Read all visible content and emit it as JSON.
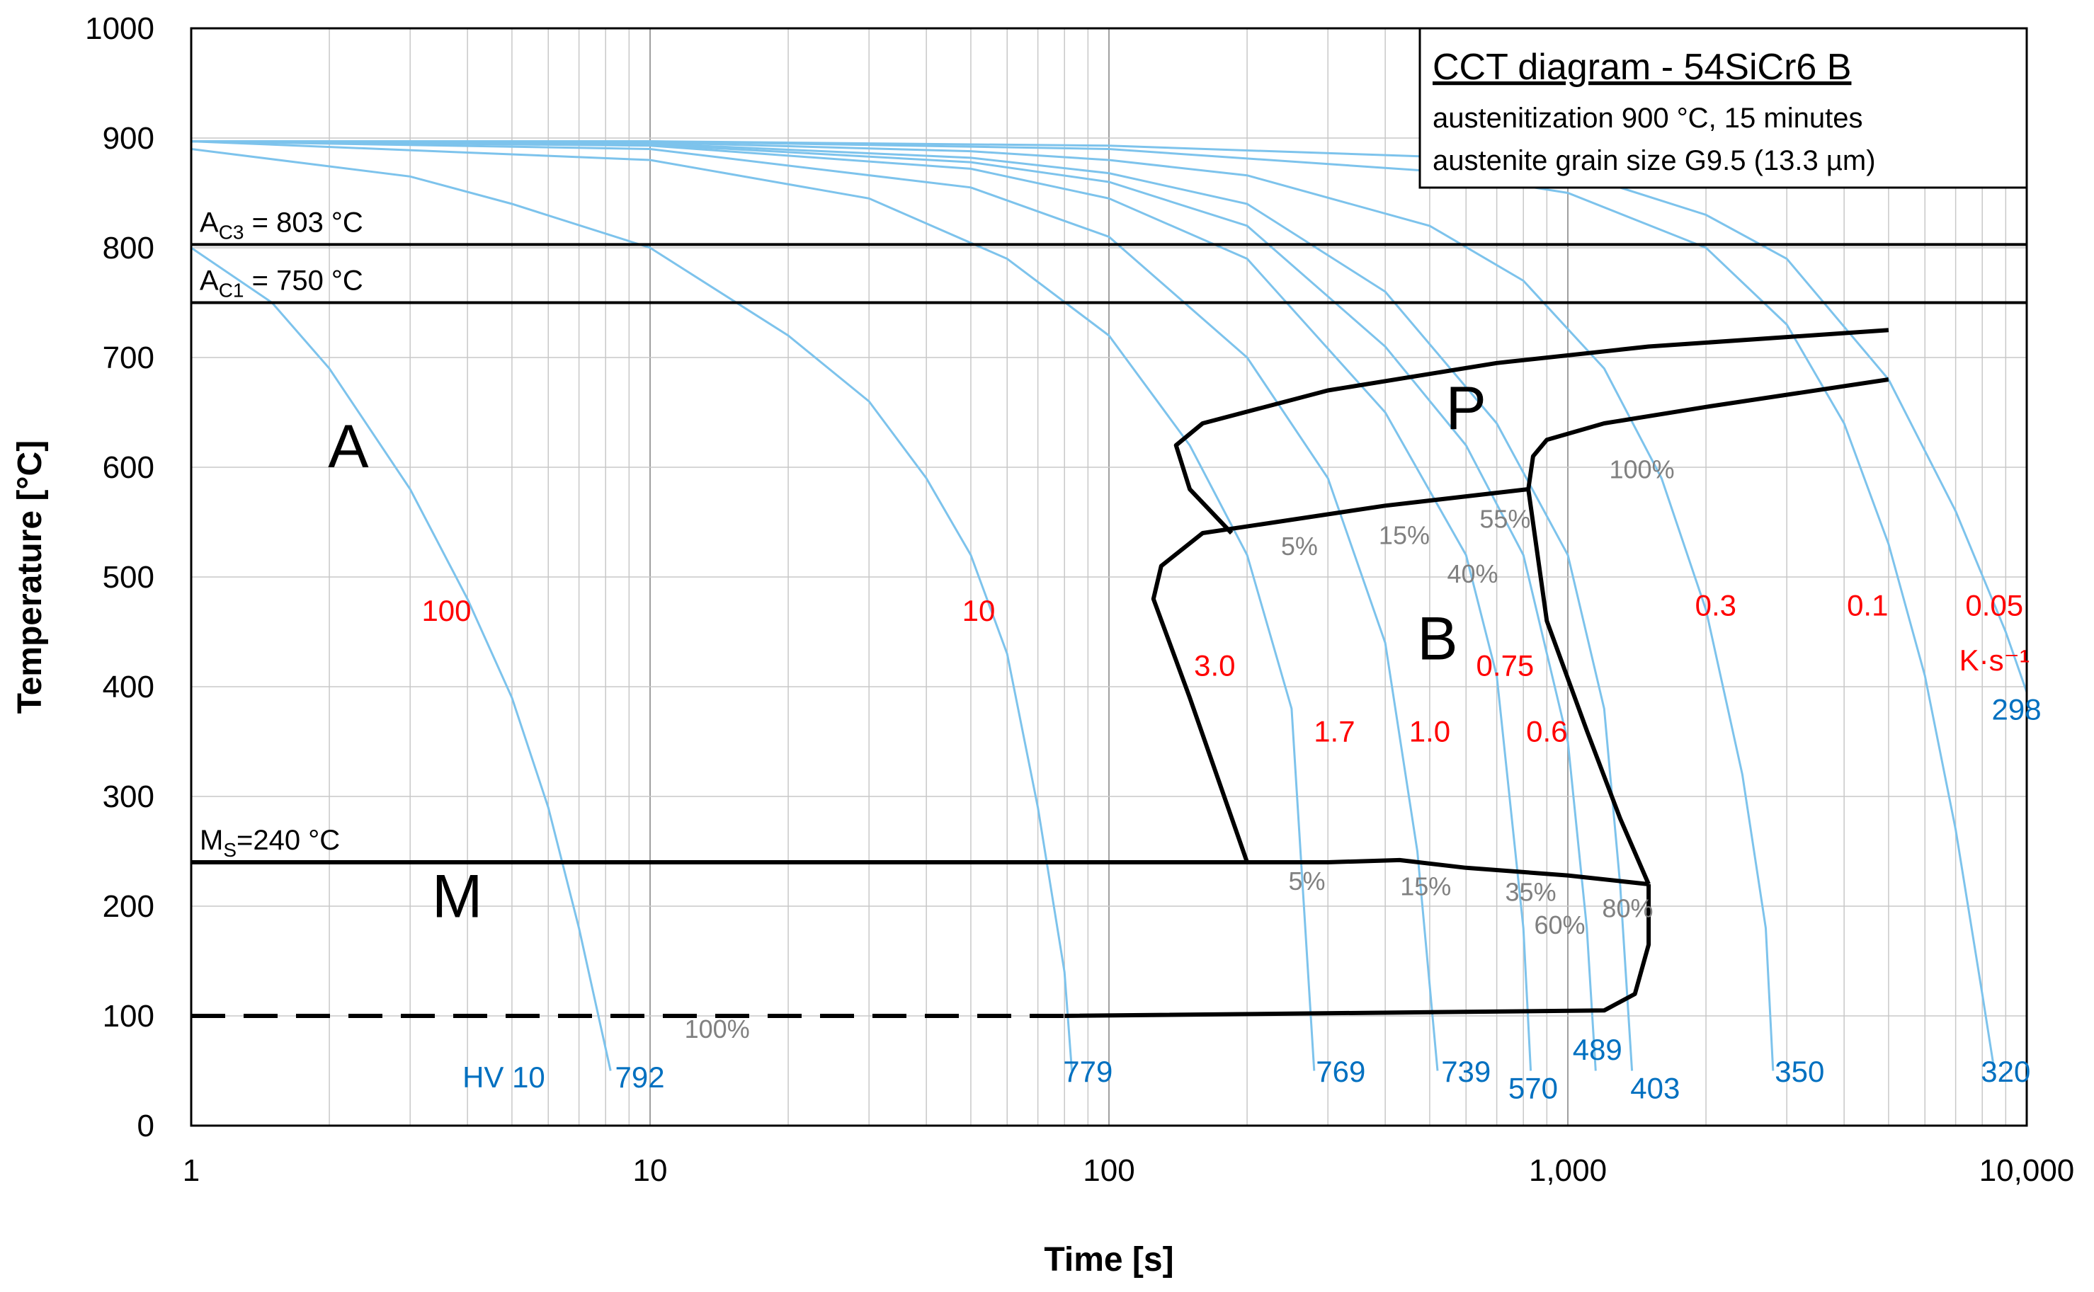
{
  "chart_data": {
    "type": "line",
    "title": "CCT diagram  - 54SiCr6   B",
    "subtitle": [
      "austenitization 900 °C, 15 minutes",
      "austenite grain size G9.5 (13.3 µm)"
    ],
    "xlabel": "Time [s]",
    "ylabel": "Temperature [°C]",
    "xscale": "log",
    "xlim": [
      1,
      10000
    ],
    "ylim": [
      0,
      1000
    ],
    "xticks": [
      1,
      10,
      100,
      1000,
      10000
    ],
    "xtick_labels": [
      "1",
      "10",
      "100",
      "1,000",
      "10,000"
    ],
    "yticks": [
      0,
      100,
      200,
      300,
      400,
      500,
      600,
      700,
      800,
      900,
      1000
    ],
    "ytick_labels": [
      "0",
      "100",
      "200",
      "300",
      "400",
      "500",
      "600",
      "700",
      "800",
      "900",
      "1000"
    ],
    "grid": true,
    "colors": {
      "cooling": "#7dc3ec",
      "boundary": "#000000",
      "rate_label": "#ff0000",
      "hardness": "#0070c0",
      "percent": "#808080"
    },
    "reference_lines": [
      {
        "name": "Ac3",
        "y": 803,
        "label_main": "A",
        "label_sub": "C3",
        "label_rest": " = 803 °C"
      },
      {
        "name": "Ac1",
        "y": 750,
        "label_main": "A",
        "label_sub": "C1",
        "label_rest": " = 750 °C"
      },
      {
        "name": "Ms",
        "y": 240,
        "label_main": "M",
        "label_sub": "S",
        "label_rest": "=240 °C"
      }
    ],
    "mf_line": {
      "y": 100,
      "x_start": 1,
      "x_end": 80,
      "style": "dashed"
    },
    "regions": [
      {
        "label": "A",
        "x": 2.2,
        "y": 600
      },
      {
        "label": "P",
        "x": 600,
        "y": 635
      },
      {
        "label": "B",
        "x": 520,
        "y": 425
      },
      {
        "label": "M",
        "x": 3.8,
        "y": 190
      }
    ],
    "cooling_curves": [
      {
        "rate": "100",
        "points": [
          [
            1,
            800
          ],
          [
            1.5,
            750
          ],
          [
            2,
            690
          ],
          [
            3,
            580
          ],
          [
            4,
            480
          ],
          [
            5,
            390
          ],
          [
            6,
            290
          ],
          [
            7,
            180
          ],
          [
            8.2,
            50
          ]
        ]
      },
      {
        "rate": "10",
        "points": [
          [
            1,
            890
          ],
          [
            3,
            865
          ],
          [
            5,
            840
          ],
          [
            10,
            800
          ],
          [
            20,
            720
          ],
          [
            30,
            660
          ],
          [
            40,
            590
          ],
          [
            50,
            520
          ],
          [
            60,
            430
          ],
          [
            70,
            290
          ],
          [
            80,
            140
          ],
          [
            83,
            50
          ]
        ]
      },
      {
        "rate": "3.0",
        "points": [
          [
            1,
            897
          ],
          [
            10,
            880
          ],
          [
            30,
            845
          ],
          [
            60,
            790
          ],
          [
            100,
            720
          ],
          [
            150,
            620
          ],
          [
            200,
            520
          ],
          [
            250,
            380
          ],
          [
            280,
            50
          ]
        ]
      },
      {
        "rate": "1.7",
        "points": [
          [
            1,
            897
          ],
          [
            10,
            890
          ],
          [
            50,
            855
          ],
          [
            100,
            810
          ],
          [
            200,
            700
          ],
          [
            300,
            590
          ],
          [
            400,
            440
          ],
          [
            470,
            250
          ],
          [
            520,
            50
          ]
        ]
      },
      {
        "rate": "1.0",
        "points": [
          [
            1,
            897
          ],
          [
            10,
            893
          ],
          [
            50,
            872
          ],
          [
            100,
            845
          ],
          [
            200,
            790
          ],
          [
            400,
            650
          ],
          [
            600,
            520
          ],
          [
            700,
            410
          ],
          [
            800,
            180
          ],
          [
            830,
            50
          ]
        ]
      },
      {
        "rate": "0.75",
        "points": [
          [
            1,
            897
          ],
          [
            10,
            894
          ],
          [
            50,
            878
          ],
          [
            100,
            860
          ],
          [
            200,
            820
          ],
          [
            400,
            710
          ],
          [
            600,
            620
          ],
          [
            800,
            520
          ],
          [
            1000,
            350
          ],
          [
            1100,
            180
          ],
          [
            1150,
            50
          ]
        ]
      },
      {
        "rate": "0.6",
        "points": [
          [
            1,
            897
          ],
          [
            10,
            895
          ],
          [
            50,
            882
          ],
          [
            100,
            868
          ],
          [
            200,
            840
          ],
          [
            400,
            760
          ],
          [
            700,
            640
          ],
          [
            1000,
            520
          ],
          [
            1200,
            380
          ],
          [
            1300,
            220
          ],
          [
            1380,
            50
          ]
        ]
      },
      {
        "rate": "0.3",
        "points": [
          [
            1,
            897
          ],
          [
            10,
            896
          ],
          [
            50,
            888
          ],
          [
            100,
            880
          ],
          [
            200,
            866
          ],
          [
            500,
            820
          ],
          [
            800,
            770
          ],
          [
            1200,
            690
          ],
          [
            1600,
            590
          ],
          [
            2000,
            470
          ],
          [
            2400,
            320
          ],
          [
            2700,
            180
          ],
          [
            2800,
            50
          ]
        ]
      },
      {
        "rate": "0.1",
        "points": [
          [
            1,
            897
          ],
          [
            10,
            897
          ],
          [
            100,
            890
          ],
          [
            500,
            870
          ],
          [
            1000,
            850
          ],
          [
            2000,
            800
          ],
          [
            3000,
            730
          ],
          [
            4000,
            640
          ],
          [
            5000,
            530
          ],
          [
            6000,
            410
          ],
          [
            7000,
            270
          ],
          [
            8000,
            120
          ],
          [
            8500,
            50
          ]
        ]
      },
      {
        "rate": "0.05",
        "points": [
          [
            1,
            897
          ],
          [
            10,
            897
          ],
          [
            100,
            893
          ],
          [
            500,
            883
          ],
          [
            1000,
            870
          ],
          [
            2000,
            830
          ],
          [
            3000,
            790
          ],
          [
            5000,
            680
          ],
          [
            7000,
            560
          ],
          [
            9000,
            450
          ],
          [
            10000,
            395
          ]
        ]
      }
    ],
    "phase_boundaries": [
      {
        "name": "P-start",
        "points": [
          [
            185,
            540
          ],
          [
            150,
            580
          ],
          [
            140,
            620
          ],
          [
            160,
            640
          ],
          [
            300,
            670
          ],
          [
            700,
            695
          ],
          [
            1500,
            710
          ],
          [
            5000,
            725
          ]
        ]
      },
      {
        "name": "P-end",
        "points": [
          [
            820,
            580
          ],
          [
            840,
            610
          ],
          [
            900,
            625
          ],
          [
            1200,
            640
          ],
          [
            2000,
            655
          ],
          [
            5000,
            680
          ]
        ]
      },
      {
        "name": "B-start",
        "points": [
          [
            200,
            240
          ],
          [
            150,
            390
          ],
          [
            125,
            480
          ],
          [
            130,
            510
          ],
          [
            160,
            540
          ],
          [
            400,
            565
          ],
          [
            820,
            580
          ]
        ]
      },
      {
        "name": "B-end",
        "points": [
          [
            820,
            580
          ],
          [
            900,
            460
          ],
          [
            1100,
            360
          ],
          [
            1300,
            280
          ],
          [
            1500,
            220
          ]
        ]
      },
      {
        "name": "M-start",
        "points": [
          [
            1,
            240
          ],
          [
            300,
            240
          ],
          [
            430,
            242
          ],
          [
            600,
            235
          ],
          [
            1000,
            228
          ],
          [
            1500,
            220
          ]
        ]
      },
      {
        "name": "Mf-end",
        "points": [
          [
            80,
            100
          ],
          [
            1200,
            105
          ],
          [
            1400,
            120
          ],
          [
            1500,
            165
          ],
          [
            1500,
            220
          ]
        ]
      }
    ],
    "rate_labels": [
      {
        "text": "100",
        "x": 3.6,
        "y": 460
      },
      {
        "text": "10",
        "x": 52,
        "y": 460
      },
      {
        "text": "3.0",
        "x": 170,
        "y": 410
      },
      {
        "text": "1.7",
        "x": 310,
        "y": 350
      },
      {
        "text": "1.0",
        "x": 500,
        "y": 350
      },
      {
        "text": "0.75",
        "x": 730,
        "y": 410
      },
      {
        "text": "0.6",
        "x": 900,
        "y": 350
      },
      {
        "text": "0.3",
        "x": 2100,
        "y": 465
      },
      {
        "text": "0.1",
        "x": 4500,
        "y": 465
      },
      {
        "text": "0.05",
        "x": 8500,
        "y": 465
      },
      {
        "text": "K·s⁻¹",
        "x": 8500,
        "y": 415
      }
    ],
    "hardness_labels": [
      {
        "text": "HV 10",
        "x": 4.8,
        "y": 35
      },
      {
        "text": "792",
        "x": 9.5,
        "y": 35
      },
      {
        "text": "779",
        "x": 90,
        "y": 40
      },
      {
        "text": "769",
        "x": 320,
        "y": 40
      },
      {
        "text": "739",
        "x": 600,
        "y": 40
      },
      {
        "text": "570",
        "x": 840,
        "y": 25
      },
      {
        "text": "489",
        "x": 1160,
        "y": 60
      },
      {
        "text": "403",
        "x": 1550,
        "y": 25
      },
      {
        "text": "350",
        "x": 3200,
        "y": 40
      },
      {
        "text": "320",
        "x": 9000,
        "y": 40
      },
      {
        "text": "298",
        "x": 9500,
        "y": 370
      }
    ],
    "percent_labels": [
      {
        "text": "100%",
        "x": 1450,
        "y": 590
      },
      {
        "text": "5%",
        "x": 260,
        "y": 520
      },
      {
        "text": "15%",
        "x": 440,
        "y": 530
      },
      {
        "text": "55%",
        "x": 730,
        "y": 545
      },
      {
        "text": "40%",
        "x": 620,
        "y": 495
      },
      {
        "text": "5%",
        "x": 270,
        "y": 215
      },
      {
        "text": "15%",
        "x": 490,
        "y": 210
      },
      {
        "text": "35%",
        "x": 830,
        "y": 205
      },
      {
        "text": "60%",
        "x": 960,
        "y": 175
      },
      {
        "text": "80%",
        "x": 1350,
        "y": 190
      },
      {
        "text": "100%",
        "x": 14,
        "y": 80
      }
    ]
  }
}
